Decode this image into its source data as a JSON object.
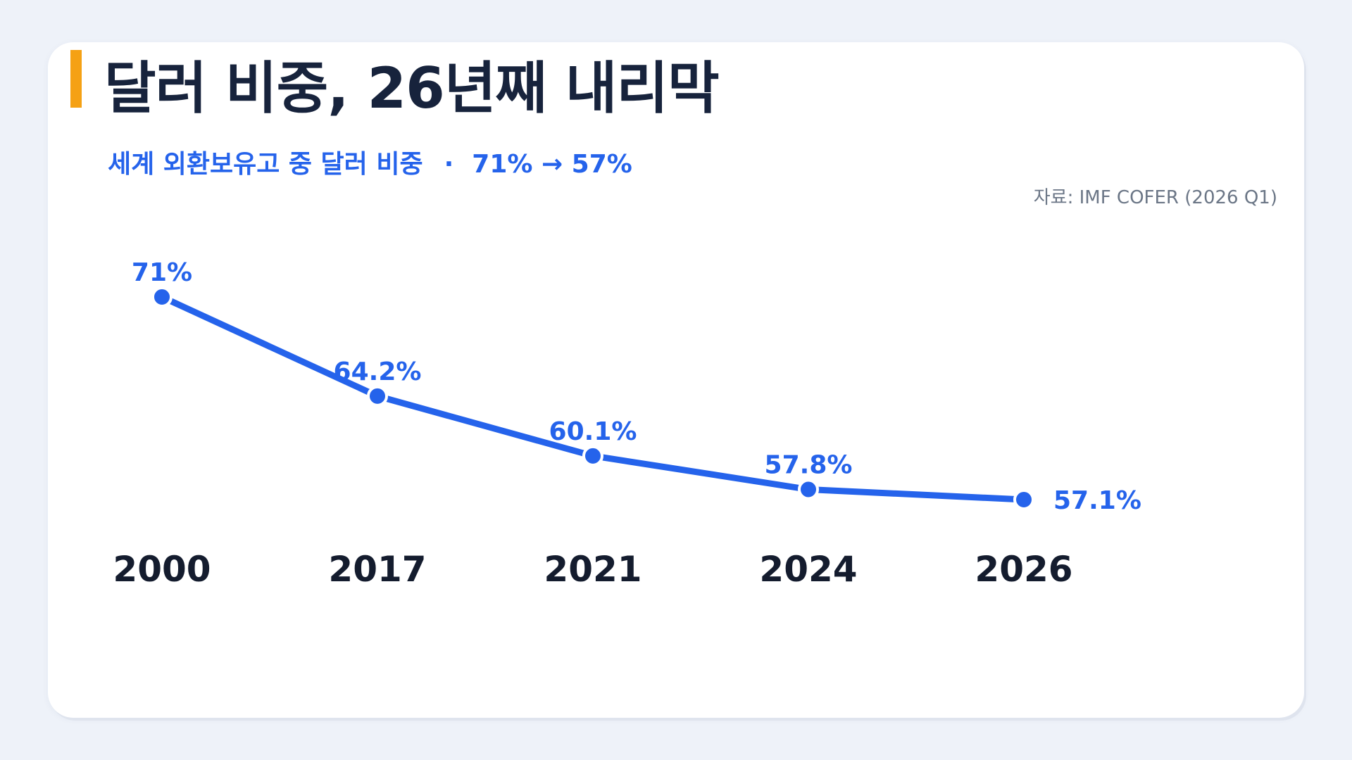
{
  "header": {
    "title": "달러 비중, 26년째 내리막",
    "subtitle_main": "세계 외환보유고 중 달러 비중",
    "subtitle_separator": "·",
    "subtitle_range": "71% → 57%",
    "source": "자료: IMF COFER (2026 Q1)"
  },
  "colors": {
    "accent": "#f5a114",
    "primary": "#2563eb",
    "title": "#17233c",
    "axis_text": "#141c2e"
  },
  "chart_data": {
    "type": "line",
    "categories": [
      "2000",
      "2017",
      "2021",
      "2024",
      "2026"
    ],
    "values": [
      71,
      64.2,
      60.1,
      57.8,
      57.1
    ],
    "labels": [
      "71%",
      "64.2%",
      "60.1%",
      "57.8%",
      "57.1%"
    ],
    "title": "달러 비중, 26년째 내리막",
    "subtitle": "세계 외환보유고 중 달러 비중 · 71% → 57%",
    "xlabel": "",
    "ylabel": "",
    "grid": false,
    "legend": "none"
  }
}
